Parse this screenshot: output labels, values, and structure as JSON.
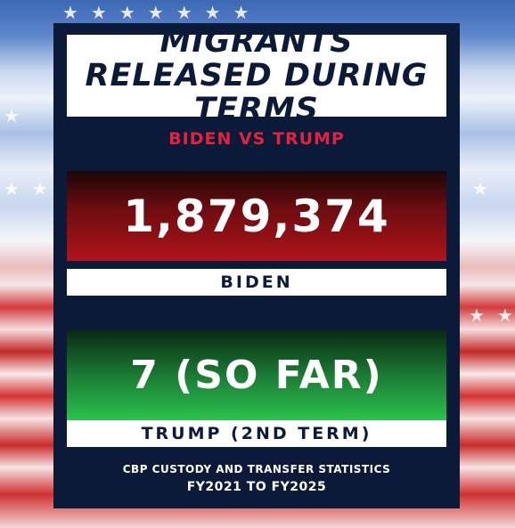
{
  "title": "MIGRANTS RELEASED DURING TERMS",
  "subtitle": "BIDEN VS TRUMP",
  "stats": [
    {
      "value": "1,879,374",
      "label": "BIDEN"
    },
    {
      "value": "7 (SO FAR)",
      "label": "TRUMP (2ND TERM)"
    }
  ],
  "source": {
    "line1": "CBP CUSTODY AND TRANSFER STATISTICS",
    "line2": "FY2021 TO FY2025"
  },
  "colors": {
    "panel": "#0c1a3a",
    "subtitle": "#e2233b",
    "biden": "#b0141a",
    "trump": "#2cc24f"
  },
  "icons": [
    "star-icon"
  ]
}
